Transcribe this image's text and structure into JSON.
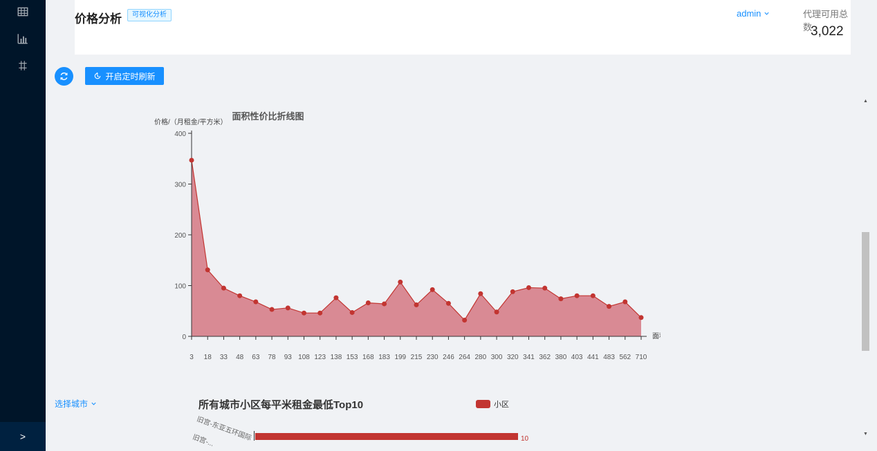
{
  "sidebar": {
    "icons": [
      "table-icon",
      "bar-chart-icon",
      "grid-icon"
    ],
    "collapse_label": ">"
  },
  "header": {
    "title": "价格分析",
    "tag": "可视化分析",
    "user": "admin",
    "stat_label": "代理可用总数",
    "stat_value": "3,022"
  },
  "toolbar": {
    "timer_label": "开启定时刷新"
  },
  "line_chart": {
    "title": "面积性价比折线图"
  },
  "bar_section": {
    "city_select": "选择城市",
    "title": "所有城市小区每平米租金最低Top10",
    "legend": "小区",
    "labels": [
      "旧宫-东亚五环国际",
      "旧宫-..."
    ],
    "first_value": "10"
  },
  "chart_data": [
    {
      "type": "area",
      "title": "面积性价比折线图",
      "xlabel": "面积",
      "ylabel": "价格/（月租金/平方米）",
      "ylim": [
        0,
        400
      ],
      "yticks": [
        0,
        100,
        200,
        300,
        400
      ],
      "x_tick_labels": [
        "3",
        "18",
        "33",
        "48",
        "63",
        "78",
        "93",
        "108",
        "123",
        "138",
        "153",
        "168",
        "183",
        "199",
        "215",
        "230",
        "246",
        "264",
        "280",
        "300",
        "320",
        "341",
        "362",
        "380",
        "403",
        "441",
        "483",
        "562",
        "710"
      ],
      "x": [
        3,
        18,
        33,
        48,
        63,
        78,
        93,
        108,
        123,
        138,
        153,
        168,
        183,
        199,
        215,
        230,
        246,
        264,
        280,
        300,
        320,
        341,
        362,
        380,
        403,
        441,
        483,
        562,
        710
      ],
      "values": [
        347,
        131,
        95,
        80,
        68,
        53,
        56,
        46,
        46,
        76,
        47,
        66,
        64,
        107,
        62,
        92,
        65,
        32,
        84,
        48,
        88,
        96,
        95,
        74,
        80,
        80,
        59,
        68,
        37
      ],
      "color": "#c23531",
      "fill": "#d98a94",
      "grid": false
    },
    {
      "type": "bar",
      "title": "所有城市小区每平米租金最低Top10",
      "series": [
        {
          "name": "小区",
          "values": [
            10
          ]
        }
      ],
      "categories": [
        "旧宫-东亚五环国际"
      ],
      "color": "#c23531"
    }
  ]
}
